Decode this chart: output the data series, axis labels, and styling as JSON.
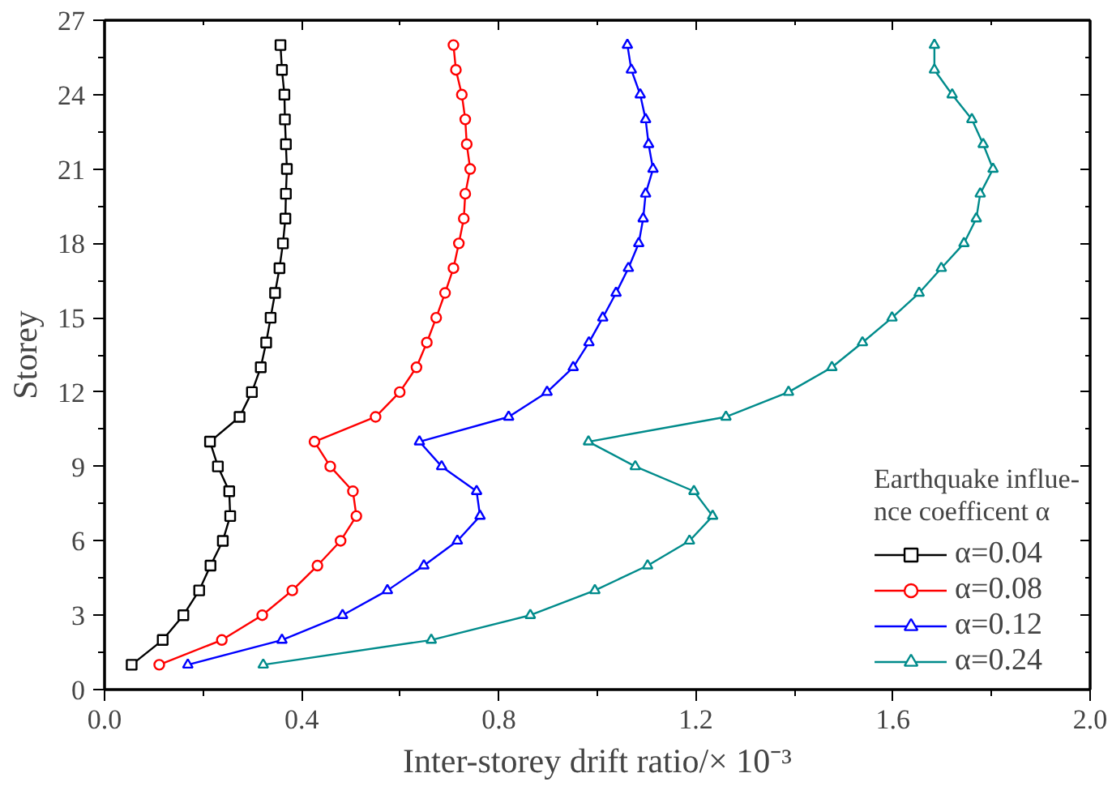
{
  "chart_data": {
    "type": "line",
    "xlabel": "Inter-storey drift ratio/× 10⁻³",
    "ylabel": "Storey",
    "legend_title": "Earthquake influe-\nnce coefficent α",
    "legend": "bottom right",
    "grid": false,
    "line_style": "solid",
    "xlim": [
      0,
      2
    ],
    "xticks": [
      {
        "value": 0,
        "label": "0.0"
      },
      {
        "value": 0.4,
        "label": "0.4"
      },
      {
        "value": 0.8,
        "label": "0.8"
      },
      {
        "value": 1.2,
        "label": "1.2"
      },
      {
        "value": 1.6,
        "label": "1.6"
      },
      {
        "value": 2,
        "label": "2.0"
      }
    ],
    "ylim": [
      0,
      27
    ],
    "yticks": [
      0,
      3,
      6,
      9,
      12,
      15,
      18,
      21,
      24,
      27
    ],
    "series": [
      {
        "name": "α=0.04",
        "color": "#000000",
        "marker": "square",
        "x": [
          0.055,
          0.118,
          0.16,
          0.192,
          0.215,
          0.24,
          0.255,
          0.253,
          0.23,
          0.214,
          0.274,
          0.299,
          0.317,
          0.328,
          0.337,
          0.346,
          0.355,
          0.362,
          0.367,
          0.368,
          0.37,
          0.368,
          0.366,
          0.365,
          0.36,
          0.357
        ],
        "values": [
          1,
          2,
          3,
          4,
          5,
          6,
          7,
          8,
          9,
          10,
          11,
          12,
          13,
          14,
          15,
          16,
          17,
          18,
          19,
          20,
          21,
          22,
          23,
          24,
          25,
          26
        ]
      },
      {
        "name": "α=0.08",
        "color": "#ff0000",
        "marker": "circle",
        "x": [
          0.111,
          0.238,
          0.32,
          0.381,
          0.432,
          0.479,
          0.511,
          0.504,
          0.458,
          0.426,
          0.55,
          0.599,
          0.633,
          0.654,
          0.673,
          0.691,
          0.708,
          0.719,
          0.729,
          0.732,
          0.742,
          0.735,
          0.732,
          0.725,
          0.713,
          0.708
        ],
        "values": [
          1,
          2,
          3,
          4,
          5,
          6,
          7,
          8,
          9,
          10,
          11,
          12,
          13,
          14,
          15,
          16,
          17,
          18,
          19,
          20,
          21,
          22,
          23,
          24,
          25,
          26
        ]
      },
      {
        "name": "α=0.12",
        "color": "#0000ff",
        "marker": "triangle",
        "x": [
          0.169,
          0.36,
          0.483,
          0.574,
          0.648,
          0.716,
          0.762,
          0.755,
          0.684,
          0.639,
          0.82,
          0.898,
          0.951,
          0.983,
          1.011,
          1.038,
          1.063,
          1.084,
          1.093,
          1.098,
          1.113,
          1.104,
          1.098,
          1.087,
          1.069,
          1.061
        ],
        "values": [
          1,
          2,
          3,
          4,
          5,
          6,
          7,
          8,
          9,
          10,
          11,
          12,
          13,
          14,
          15,
          16,
          17,
          18,
          19,
          20,
          21,
          22,
          23,
          24,
          25,
          26
        ]
      },
      {
        "name": "α=0.24",
        "color": "#008b8b",
        "marker": "triangle",
        "x": [
          0.322,
          0.663,
          0.864,
          0.995,
          1.102,
          1.187,
          1.234,
          1.196,
          1.077,
          0.982,
          1.261,
          1.388,
          1.476,
          1.538,
          1.598,
          1.653,
          1.698,
          1.744,
          1.769,
          1.777,
          1.803,
          1.783,
          1.76,
          1.72,
          1.684,
          1.684
        ],
        "values": [
          1,
          2,
          3,
          4,
          5,
          6,
          7,
          8,
          9,
          10,
          11,
          12,
          13,
          14,
          15,
          16,
          17,
          18,
          19,
          20,
          21,
          22,
          23,
          24,
          25,
          26
        ]
      }
    ]
  }
}
